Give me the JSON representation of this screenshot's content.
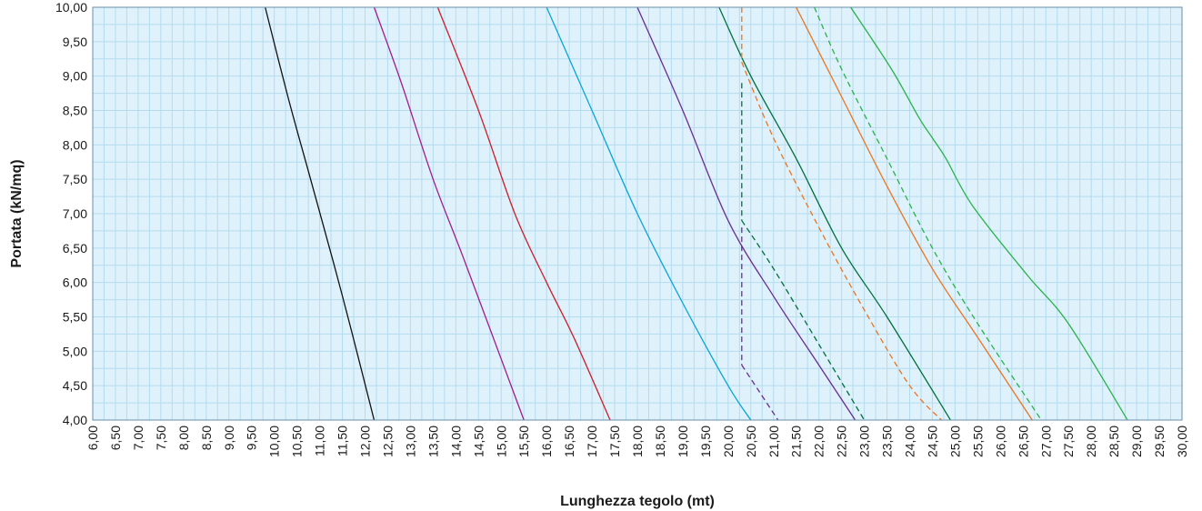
{
  "chart_data": {
    "type": "line",
    "xlabel": "Lunghezza tegolo (mt)",
    "ylabel": "Portata (kN/mq)",
    "xlim": [
      6.0,
      30.0
    ],
    "ylim": [
      4.0,
      10.0
    ],
    "x_ticks": [
      "6,00",
      "6,50",
      "7,00",
      "7,50",
      "8,00",
      "8,50",
      "9,00",
      "9,50",
      "10,00",
      "10,50",
      "11,00",
      "11,50",
      "12,00",
      "12,50",
      "13,00",
      "13,50",
      "14,00",
      "14,50",
      "15,00",
      "15,50",
      "16,00",
      "16,50",
      "17,00",
      "17,50",
      "18,00",
      "18,50",
      "19,00",
      "19,50",
      "20,00",
      "20,50",
      "21,00",
      "21,50",
      "22,00",
      "22,50",
      "23,00",
      "23,50",
      "24,00",
      "24,50",
      "25,00",
      "25,50",
      "26,00",
      "26,50",
      "27,00",
      "27,50",
      "28,00",
      "28,50",
      "29,00",
      "29,50",
      "30,00"
    ],
    "y_ticks": [
      "4,00",
      "4,50",
      "5,00",
      "5,50",
      "6,00",
      "6,50",
      "7,00",
      "7,50",
      "8,00",
      "8,50",
      "9,00",
      "9,50",
      "10,00"
    ],
    "grid": true,
    "legend": "none",
    "plot_background": "#dff1fb",
    "series": [
      {
        "color": "#111111",
        "dash": false,
        "points": [
          [
            9.8,
            10.0
          ],
          [
            10.3,
            8.7
          ],
          [
            10.8,
            7.5
          ],
          [
            11.3,
            6.3
          ],
          [
            11.7,
            5.3
          ],
          [
            12.2,
            4.0
          ]
        ]
      },
      {
        "color": "#a01f8e",
        "dash": false,
        "points": [
          [
            12.2,
            10.0
          ],
          [
            12.8,
            8.9
          ],
          [
            13.5,
            7.5
          ],
          [
            14.2,
            6.3
          ],
          [
            15.5,
            4.0
          ]
        ]
      },
      {
        "color": "#cc1f2d",
        "dash": false,
        "points": [
          [
            13.6,
            10.0
          ],
          [
            14.5,
            8.5
          ],
          [
            15.3,
            7.0
          ],
          [
            16.0,
            6.0
          ],
          [
            16.6,
            5.2
          ],
          [
            17.4,
            4.0
          ]
        ]
      },
      {
        "color": "#0aa6d6",
        "dash": false,
        "points": [
          [
            16.0,
            10.0
          ],
          [
            17.0,
            8.5
          ],
          [
            18.0,
            7.0
          ],
          [
            19.0,
            5.7
          ],
          [
            20.0,
            4.5
          ],
          [
            20.5,
            4.0
          ]
        ]
      },
      {
        "color": "#6a2c91",
        "dash": false,
        "points": [
          [
            18.0,
            10.0
          ],
          [
            19.0,
            8.5
          ],
          [
            20.0,
            6.9
          ],
          [
            21.0,
            5.8
          ],
          [
            22.0,
            4.8
          ],
          [
            22.8,
            4.0
          ]
        ]
      },
      {
        "color": "#00703c",
        "dash": false,
        "points": [
          [
            19.8,
            10.0
          ],
          [
            20.5,
            9.0
          ],
          [
            21.5,
            7.8
          ],
          [
            22.5,
            6.5
          ],
          [
            23.5,
            5.5
          ],
          [
            24.9,
            4.0
          ]
        ]
      },
      {
        "color": "#e87722",
        "dash": false,
        "points": [
          [
            21.5,
            10.0
          ],
          [
            22.5,
            8.7
          ],
          [
            23.5,
            7.4
          ],
          [
            24.5,
            6.2
          ],
          [
            25.5,
            5.2
          ],
          [
            26.7,
            4.0
          ]
        ]
      },
      {
        "color": "#2ab34a",
        "dash": false,
        "points": [
          [
            22.7,
            10.0
          ],
          [
            23.6,
            9.1
          ],
          [
            24.2,
            8.4
          ],
          [
            24.5,
            8.1
          ],
          [
            24.8,
            7.8
          ],
          [
            25.4,
            7.1
          ],
          [
            26.6,
            6.1
          ],
          [
            27.5,
            5.4
          ],
          [
            28.8,
            4.0
          ]
        ]
      },
      {
        "color": "#e87722",
        "dash": true,
        "points": [
          [
            20.3,
            10.0
          ],
          [
            20.3,
            9.2
          ],
          [
            21.0,
            8.1
          ],
          [
            22.0,
            6.8
          ],
          [
            23.0,
            5.6
          ],
          [
            24.0,
            4.5
          ],
          [
            24.7,
            4.0
          ]
        ]
      },
      {
        "color": "#2ab34a",
        "dash": true,
        "points": [
          [
            21.9,
            10.0
          ],
          [
            22.5,
            9.1
          ],
          [
            23.5,
            7.8
          ],
          [
            24.5,
            6.5
          ],
          [
            25.5,
            5.4
          ],
          [
            26.9,
            4.0
          ]
        ]
      },
      {
        "color": "#00703c",
        "dash": true,
        "points": [
          [
            20.3,
            8.9
          ],
          [
            20.3,
            6.9
          ],
          [
            21.0,
            6.2
          ],
          [
            22.0,
            5.1
          ],
          [
            23.0,
            4.0
          ]
        ]
      },
      {
        "color": "#6a2c91",
        "dash": true,
        "points": [
          [
            20.3,
            6.8
          ],
          [
            20.3,
            4.8
          ],
          [
            20.7,
            4.4
          ],
          [
            21.1,
            4.0
          ]
        ]
      }
    ]
  }
}
